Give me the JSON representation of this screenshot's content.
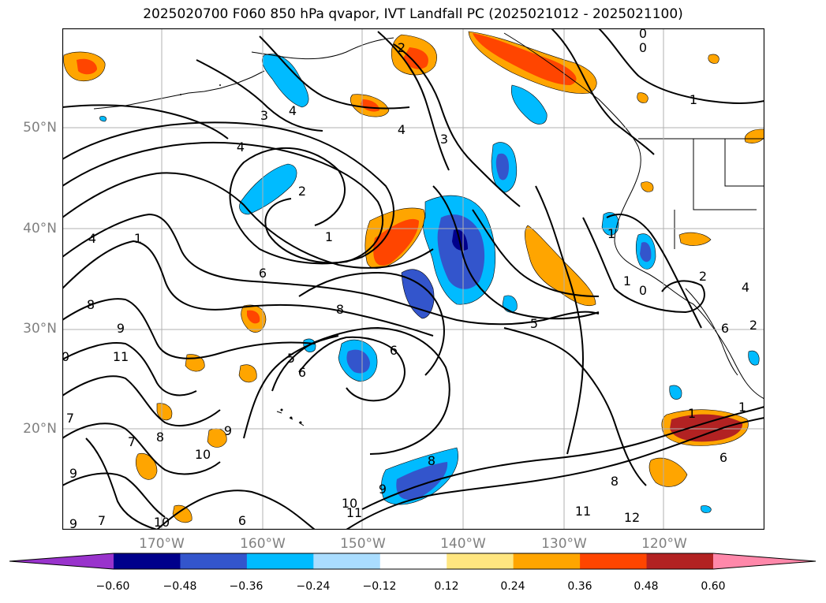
{
  "title": "2025020700 F060 850 hPa qvapor, IVT Landfall PC (2025021012 - 2025021100)",
  "lat_labels": [
    "50°N",
    "40°N",
    "30°N",
    "20°N"
  ],
  "lon_labels": [
    "170°W",
    "160°W",
    "150°W",
    "140°W",
    "130°W",
    "120°W"
  ],
  "colorbar": {
    "levels": [
      "−0.60",
      "−0.48",
      "−0.36",
      "−0.24",
      "−0.12",
      "0.12",
      "0.24",
      "0.36",
      "0.48",
      "0.60"
    ],
    "colors": [
      "#9933cc",
      "#00008b",
      "#3355cc",
      "#00bbff",
      "#aaddff",
      "#ffffff",
      "#ffe680",
      "#ffa500",
      "#ff4500",
      "#b22222",
      "#ff88aa"
    ]
  },
  "contour_labels": [
    {
      "id": "c1",
      "text": "0"
    },
    {
      "id": "c2",
      "text": "0"
    },
    {
      "id": "c3",
      "text": "1"
    },
    {
      "id": "c4",
      "text": "2"
    },
    {
      "id": "c5",
      "text": "3"
    },
    {
      "id": "c6",
      "text": "4"
    },
    {
      "id": "c7",
      "text": "4"
    },
    {
      "id": "c8",
      "text": "3"
    },
    {
      "id": "c9",
      "text": "4"
    },
    {
      "id": "c10",
      "text": "2"
    },
    {
      "id": "c11",
      "text": "1"
    },
    {
      "id": "c12",
      "text": "4"
    },
    {
      "id": "c13",
      "text": "1"
    },
    {
      "id": "c14",
      "text": "6"
    },
    {
      "id": "c15",
      "text": "8"
    },
    {
      "id": "c16",
      "text": "8"
    },
    {
      "id": "c17",
      "text": "9"
    },
    {
      "id": "c18",
      "text": "11"
    },
    {
      "id": "c19",
      "text": "0"
    },
    {
      "id": "c20",
      "text": "5"
    },
    {
      "id": "c21",
      "text": "6"
    },
    {
      "id": "c22",
      "text": "6"
    },
    {
      "id": "c23",
      "text": "5"
    },
    {
      "id": "c24",
      "text": "1"
    },
    {
      "id": "c25",
      "text": "0"
    },
    {
      "id": "c26",
      "text": "1"
    },
    {
      "id": "c27",
      "text": "2"
    },
    {
      "id": "c28",
      "text": "4"
    },
    {
      "id": "c29",
      "text": "7"
    },
    {
      "id": "c30",
      "text": "8"
    },
    {
      "id": "c31",
      "text": "9"
    },
    {
      "id": "c32",
      "text": "10"
    },
    {
      "id": "c33",
      "text": "7"
    },
    {
      "id": "c34",
      "text": "9"
    },
    {
      "id": "c35",
      "text": "9"
    },
    {
      "id": "c36",
      "text": "7"
    },
    {
      "id": "c37",
      "text": "10"
    },
    {
      "id": "c38",
      "text": "6"
    },
    {
      "id": "c39",
      "text": "10"
    },
    {
      "id": "c40",
      "text": "11"
    },
    {
      "id": "c41",
      "text": "9"
    },
    {
      "id": "c42",
      "text": "8"
    },
    {
      "id": "c43",
      "text": "11"
    },
    {
      "id": "c44",
      "text": "12"
    },
    {
      "id": "c45",
      "text": "8"
    },
    {
      "id": "c46",
      "text": "6"
    },
    {
      "id": "c47",
      "text": "1"
    },
    {
      "id": "c48",
      "text": "1"
    },
    {
      "id": "c49",
      "text": "2"
    },
    {
      "id": "c50",
      "text": "6"
    }
  ]
}
